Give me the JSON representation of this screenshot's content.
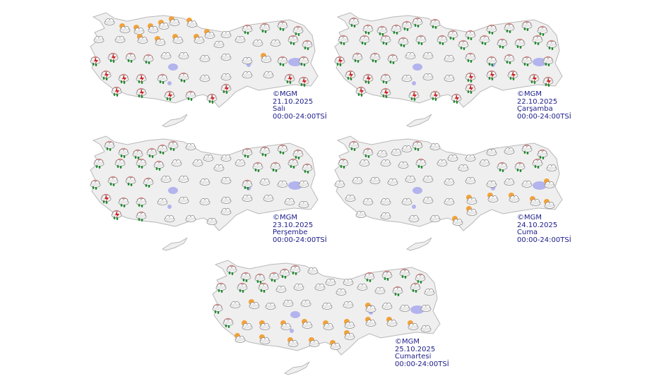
{
  "maps": [
    {
      "copyright": "©MGM",
      "date": "21.10.2025",
      "day": "Salı",
      "period": "00:00-24:00TSİ",
      "icons": [
        "c",
        "s",
        "s",
        "s",
        "s",
        "s",
        "s",
        "s",
        "c",
        "r",
        "r",
        "r",
        "r",
        "c",
        "c",
        "s",
        "s",
        "s",
        "s",
        "c",
        "c",
        "c",
        "c",
        "r",
        "r",
        "t",
        "t",
        "r",
        "r",
        "c",
        "c",
        "c",
        "c",
        "c",
        "s",
        "r",
        "r",
        "t",
        "t",
        "t",
        "r",
        "r",
        "c",
        "c",
        "c",
        "c",
        "t",
        "t",
        "t",
        "t",
        "t",
        "r",
        "t",
        "t"
      ]
    },
    {
      "copyright": "©MGM",
      "date": "22.10.2025",
      "day": "Çarşamba",
      "period": "00:00-24:00TSİ",
      "icons": [
        "r",
        "r",
        "r",
        "r",
        "r",
        "r",
        "r",
        "r",
        "r",
        "r",
        "r",
        "r",
        "r",
        "r",
        "r",
        "r",
        "r",
        "r",
        "r",
        "r",
        "r",
        "r",
        "r",
        "r",
        "r",
        "t",
        "r",
        "r",
        "r",
        "c",
        "c",
        "c",
        "r",
        "r",
        "r",
        "r",
        "r",
        "t",
        "t",
        "r",
        "c",
        "c",
        "c",
        "t",
        "t",
        "t",
        "t",
        "t",
        "t",
        "t",
        "t",
        "t",
        "t",
        "t"
      ]
    },
    {
      "copyright": "©MGM",
      "date": "23.10.2025",
      "day": "Perşembe",
      "period": "00:00-24:00TSİ",
      "icons": [
        "r",
        "r",
        "r",
        "r",
        "r",
        "r",
        "c",
        "c",
        "c",
        "r",
        "r",
        "r",
        "r",
        "r",
        "r",
        "r",
        "r",
        "c",
        "c",
        "c",
        "c",
        "r",
        "r",
        "r",
        "r",
        "r",
        "r",
        "r",
        "r",
        "c",
        "c",
        "c",
        "c",
        "r",
        "c",
        "c",
        "c",
        "t",
        "r",
        "r",
        "c",
        "c",
        "c",
        "c",
        "c",
        "c",
        "c",
        "c",
        "t",
        "r",
        "c",
        "c",
        "c",
        "c"
      ]
    },
    {
      "copyright": "©MGM",
      "date": "24.10.2025",
      "day": "Cuma",
      "period": "00:00-24:00TSİ",
      "icons": [
        "r",
        "r",
        "c",
        "c",
        "c",
        "r",
        "c",
        "c",
        "c",
        "c",
        "c",
        "r",
        "r",
        "r",
        "c",
        "c",
        "c",
        "r",
        "c",
        "c",
        "c",
        "r",
        "r",
        "r",
        "c",
        "c",
        "c",
        "c",
        "c",
        "c",
        "c",
        "c",
        "c",
        "c",
        "c",
        "c",
        "s",
        "c",
        "c",
        "c",
        "c",
        "c",
        "c",
        "s",
        "s",
        "s",
        "s",
        "s",
        "c",
        "c",
        "c",
        "c",
        "s",
        "s"
      ]
    },
    {
      "copyright": "©MGM",
      "date": "25.10.2025",
      "day": "Cumartesi",
      "period": "00:00-24:00TSİ",
      "icons": [
        "r",
        "r",
        "r",
        "r",
        "r",
        "r",
        "c",
        "c",
        "c",
        "r",
        "r",
        "r",
        "r",
        "r",
        "r",
        "r",
        "c",
        "c",
        "c",
        "c",
        "c",
        "c",
        "r",
        "r",
        "c",
        "r",
        "c",
        "s",
        "c",
        "c",
        "c",
        "c",
        "c",
        "s",
        "c",
        "c",
        "c",
        "r",
        "s",
        "s",
        "s",
        "s",
        "s",
        "s",
        "s",
        "s",
        "s",
        "c",
        "s",
        "s",
        "s",
        "s",
        "s",
        "s"
      ]
    }
  ],
  "icon_legend": {
    "c": "cloudy-icon",
    "s": "partly-sunny-icon",
    "r": "rain-icon",
    "t": "thunderstorm-icon"
  },
  "colors": {
    "label": "#1c1c8a",
    "land": "#efefef",
    "border": "#b8b8b8",
    "lake": "#b3b3ee",
    "sun": "#f2a23a",
    "rain": "#1e8a2e",
    "thunder": "#d22020"
  }
}
